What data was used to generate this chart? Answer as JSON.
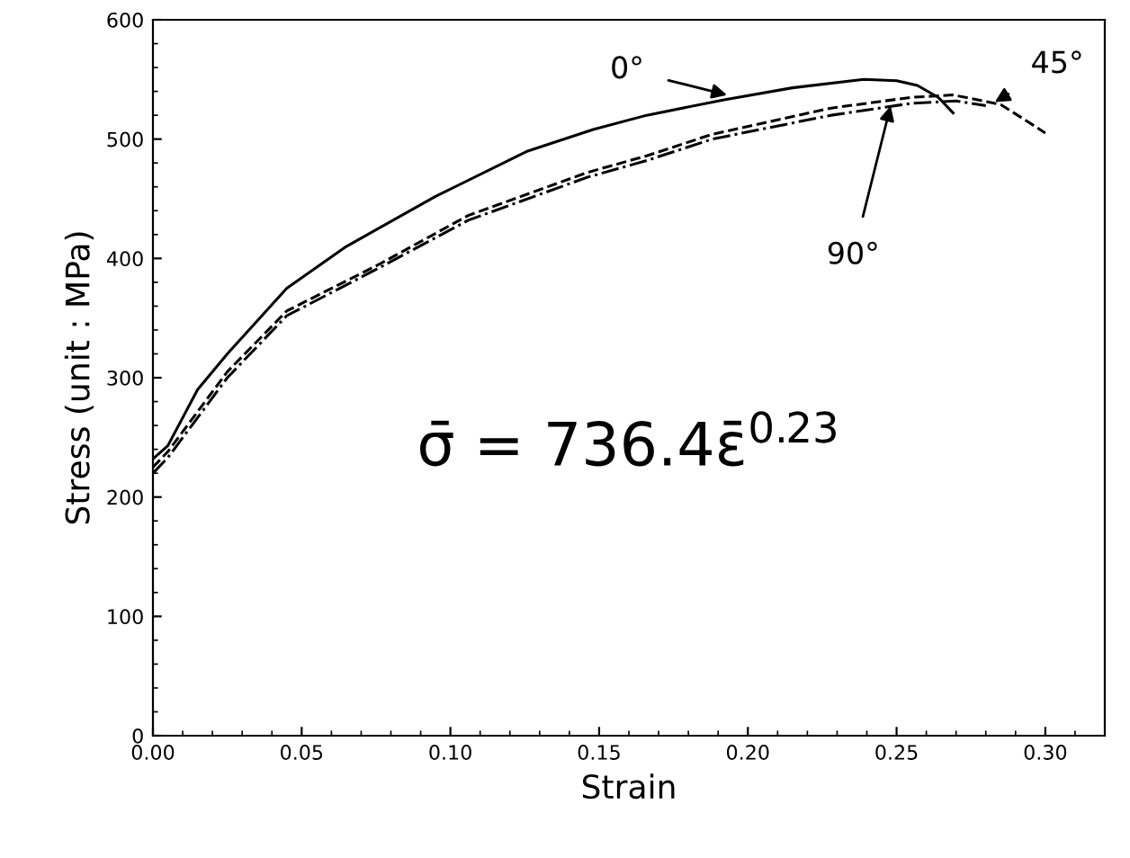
{
  "chart_data": {
    "type": "line",
    "xlabel": "Strain",
    "ylabel": "Stress (unit : MPa)",
    "xlim": [
      0,
      0.32
    ],
    "xticks": [
      {
        "value": 0,
        "label": "0.00"
      },
      {
        "value": 0.05,
        "label": "0.05"
      },
      {
        "value": 0.1,
        "label": "0.10"
      },
      {
        "value": 0.15,
        "label": "0.15"
      },
      {
        "value": 0.2,
        "label": "0.20"
      },
      {
        "value": 0.25,
        "label": "0.25"
      },
      {
        "value": 0.3,
        "label": "0.30"
      }
    ],
    "ylim": [
      0,
      600
    ],
    "yticks": [
      0,
      100,
      200,
      300,
      400,
      500,
      600
    ],
    "grid": false,
    "legend": false,
    "marker": "none",
    "series": [
      {
        "color": "#000000",
        "line_style": "solid",
        "x": [
          0.0,
          0.005,
          0.015,
          0.025,
          0.045,
          0.065,
          0.095,
          0.126,
          0.148,
          0.166,
          0.192,
          0.215,
          0.239,
          0.25,
          0.257,
          0.264,
          0.269
        ],
        "values": [
          232,
          243,
          290,
          320,
          375,
          410,
          452,
          490,
          508,
          520,
          533,
          543,
          550,
          549,
          545,
          535,
          522
        ]
      },
      {
        "color": "#000000",
        "line_style": "dashed",
        "x": [
          0.0,
          0.005,
          0.025,
          0.045,
          0.076,
          0.106,
          0.146,
          0.166,
          0.188,
          0.228,
          0.255,
          0.269,
          0.285,
          0.297,
          0.3
        ],
        "values": [
          225,
          238,
          305,
          356,
          395,
          436,
          472,
          486,
          504,
          526,
          535,
          537,
          529,
          510,
          505
        ]
      },
      {
        "color": "#000000",
        "line_style": "dashdot",
        "x": [
          0.0,
          0.005,
          0.025,
          0.045,
          0.076,
          0.106,
          0.146,
          0.166,
          0.188,
          0.228,
          0.255,
          0.27,
          0.28
        ],
        "values": [
          220,
          233,
          300,
          352,
          392,
          432,
          468,
          482,
          500,
          520,
          530,
          532,
          528
        ]
      }
    ],
    "annotations": [
      {
        "text": "0°",
        "x": 0.193,
        "y": 537
      },
      {
        "text": "45°",
        "x": 0.283,
        "y": 531
      },
      {
        "text": "90°",
        "x": 0.248,
        "y": 528
      },
      "σ̄ = 736.4ε̄$^{0.23}$"
    ]
  }
}
